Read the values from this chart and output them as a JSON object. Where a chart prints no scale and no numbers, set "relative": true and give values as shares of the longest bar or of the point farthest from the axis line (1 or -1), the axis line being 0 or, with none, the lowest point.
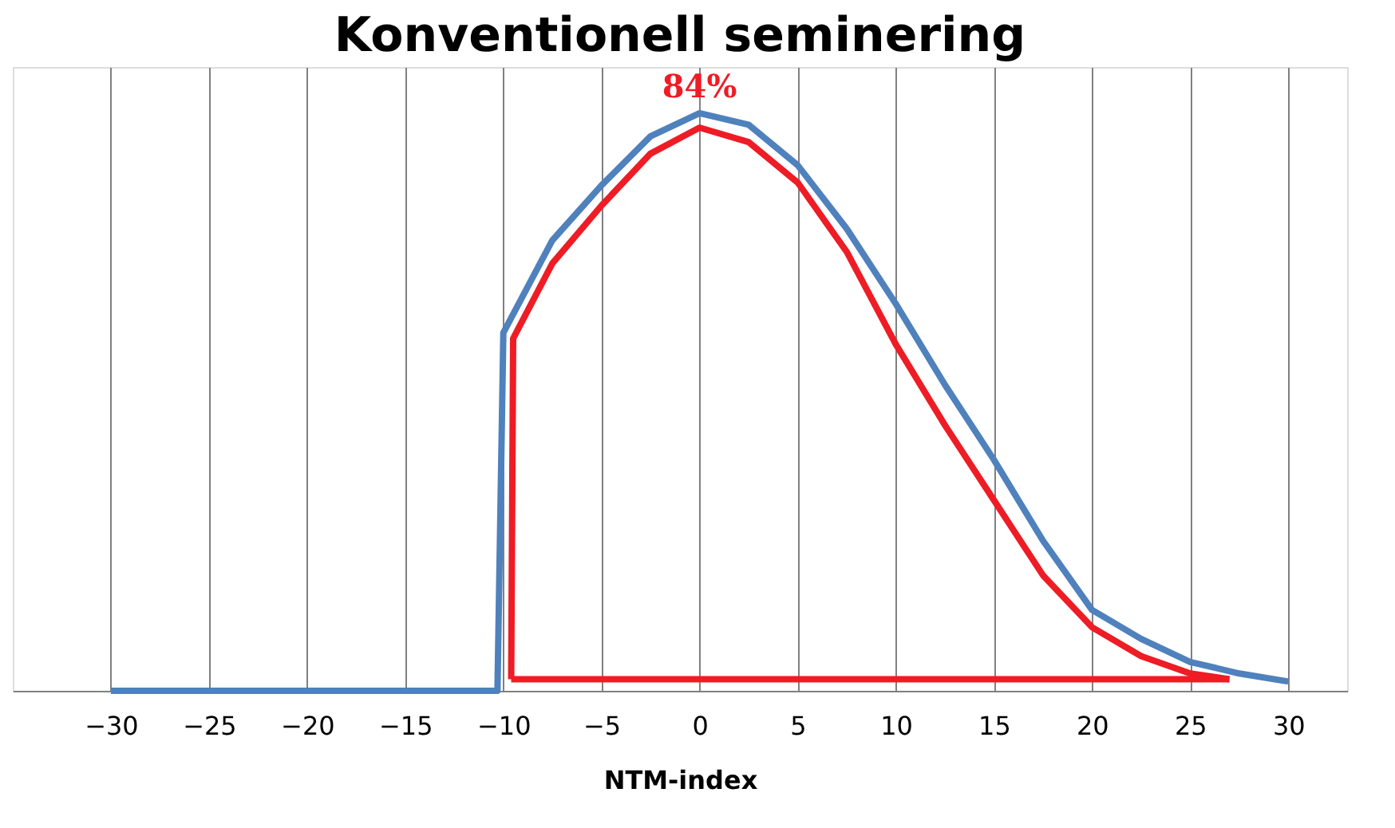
{
  "chart_data": {
    "type": "line",
    "title": "Konventionell seminering",
    "xlabel": "NTM-index",
    "relative": true,
    "xlim": [
      -35,
      33
    ],
    "xticks": [
      -30,
      -25,
      -20,
      -15,
      -10,
      -5,
      0,
      5,
      10,
      15,
      20,
      25,
      30
    ],
    "grid": "x",
    "legend": false,
    "marker": "none",
    "line_style": "solid",
    "series": [
      {
        "color": "#4f81bd",
        "x": [
          -30,
          -10.3,
          -10,
          -7.5,
          -5,
          -2.5,
          0,
          2.5,
          5,
          7.5,
          10,
          12.5,
          15,
          17.5,
          20,
          22.5,
          25,
          27.5,
          30
        ],
        "values": [
          0,
          0,
          0.62,
          0.78,
          0.875,
          0.96,
          1,
          0.98,
          0.91,
          0.8,
          0.67,
          0.53,
          0.4,
          0.26,
          0.14,
          0.09,
          0.05,
          0.03,
          0.016
        ]
      },
      {
        "color": "#ee1c25",
        "x": [
          -9.6,
          -9.5,
          -7.5,
          -5,
          -2.5,
          0,
          2.5,
          5,
          7.5,
          10,
          12.5,
          15,
          17.5,
          20,
          22.5,
          25,
          27
        ],
        "values": [
          0.02,
          0.61,
          0.74,
          0.84,
          0.93,
          0.975,
          0.95,
          0.88,
          0.76,
          0.6,
          0.46,
          0.33,
          0.2,
          0.11,
          0.06,
          0.03,
          0.02
        ]
      },
      {
        "color": "#ee1c25",
        "x": [
          -9.6,
          27
        ],
        "values": [
          0.02,
          0.02
        ]
      }
    ],
    "annotations": [
      {
        "text": "84%",
        "x": 0,
        "y": 1
      }
    ]
  }
}
